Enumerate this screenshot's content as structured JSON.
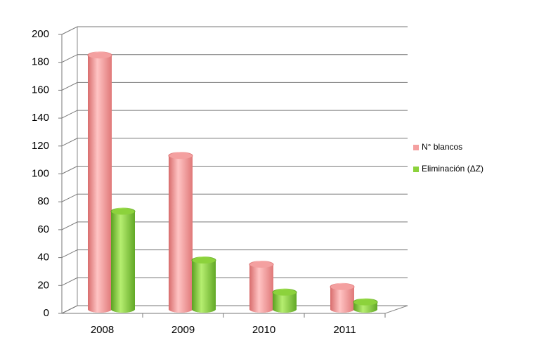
{
  "chart_data": {
    "type": "bar3d",
    "categories": [
      "2008",
      "2009",
      "2010",
      "2011"
    ],
    "series": [
      {
        "name": "N° blancos",
        "color": "#f4a0a0",
        "values": [
          182,
          110,
          32,
          16
        ]
      },
      {
        "name": "Eliminación (ΔZ)",
        "color": "#8cd23c",
        "values": [
          70,
          35,
          12,
          5
        ]
      }
    ],
    "ylim": [
      0,
      200
    ],
    "yticks": [
      0,
      20,
      40,
      60,
      80,
      100,
      120,
      140,
      160,
      180,
      200
    ],
    "grid": true,
    "legend": "right"
  }
}
